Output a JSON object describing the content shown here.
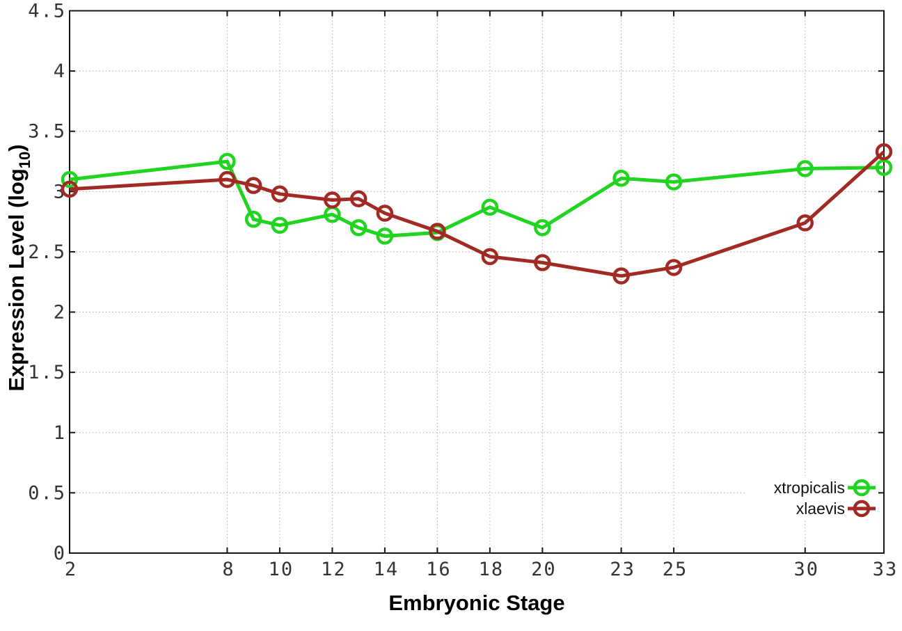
{
  "chart": {
    "ylabel_prefix": "Expression Level (log",
    "ylabel_sub": "10",
    "ylabel_suffix": ")"
  },
  "chart_data": {
    "type": "line",
    "title": "",
    "xlabel": "Embryonic Stage",
    "ylabel": "Expression Level (log10)",
    "x": [
      2,
      8,
      9,
      10,
      12,
      13,
      14,
      16,
      18,
      20,
      23,
      25,
      30,
      33
    ],
    "series": [
      {
        "name": "xtropicalis",
        "color": "#20d420",
        "values": [
          3.1,
          3.25,
          2.77,
          2.72,
          2.81,
          2.7,
          2.63,
          2.66,
          2.87,
          2.7,
          3.11,
          3.08,
          3.19,
          3.2
        ]
      },
      {
        "name": "xlaevis",
        "color": "#a22a24",
        "values": [
          3.02,
          3.1,
          3.05,
          2.98,
          2.93,
          2.94,
          2.82,
          2.67,
          2.46,
          2.41,
          2.3,
          2.37,
          2.74,
          3.33
        ]
      }
    ],
    "xticks": [
      2,
      8,
      10,
      12,
      14,
      16,
      18,
      20,
      23,
      25,
      30,
      33
    ],
    "yticks": [
      0,
      0.5,
      1,
      1.5,
      2,
      2.5,
      3,
      3.5,
      4,
      4.5
    ],
    "xlim": [
      2,
      33
    ],
    "ylim": [
      0,
      4.5
    ],
    "grid": true,
    "legend_position": "inside bottom-right",
    "marker": "open-circle",
    "background": "#ffffff"
  }
}
